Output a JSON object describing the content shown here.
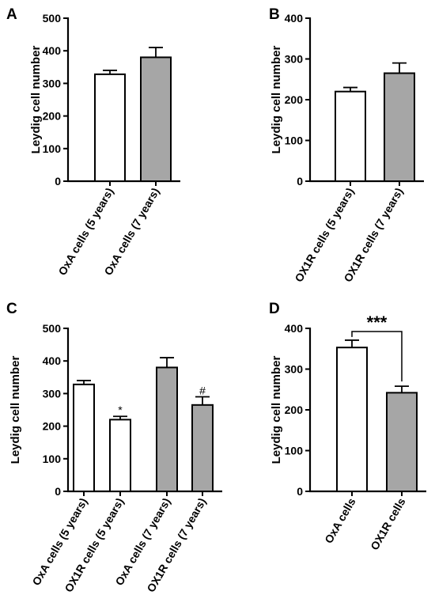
{
  "chart_data": [
    {
      "panel": "A",
      "type": "bar",
      "ylabel": "Leydig cell number",
      "ylim": [
        0,
        500
      ],
      "yticks": [
        0,
        100,
        200,
        300,
        400,
        500
      ],
      "categories": [
        "OxA cells (5 years)",
        "OxA cells (7 years)"
      ],
      "values": [
        328,
        380
      ],
      "errors": [
        12,
        30
      ],
      "colors": [
        "#ffffff",
        "#a6a6a6"
      ],
      "annotations": [
        "",
        ""
      ]
    },
    {
      "panel": "B",
      "type": "bar",
      "ylabel": "Leydig cell number",
      "ylim": [
        0,
        400
      ],
      "yticks": [
        0,
        100,
        200,
        300,
        400
      ],
      "categories": [
        "OX1R cells (5 years)",
        "OX1R cells (7 years)"
      ],
      "values": [
        220,
        265
      ],
      "errors": [
        10,
        25
      ],
      "colors": [
        "#ffffff",
        "#a6a6a6"
      ],
      "annotations": [
        "",
        ""
      ]
    },
    {
      "panel": "C",
      "type": "bar",
      "ylabel": "Leydig cell number",
      "ylim": [
        0,
        500
      ],
      "yticks": [
        0,
        100,
        200,
        300,
        400,
        500
      ],
      "categories": [
        "OxA cells (5 years)",
        "OX1R cells (5 years)",
        "OxA cells (7 years)",
        "OX1R cells (7 years)"
      ],
      "values": [
        328,
        220,
        380,
        265
      ],
      "errors": [
        12,
        10,
        30,
        25
      ],
      "colors": [
        "#ffffff",
        "#ffffff",
        "#a6a6a6",
        "#a6a6a6"
      ],
      "annotations": [
        "",
        "*",
        "",
        "#"
      ]
    },
    {
      "panel": "D",
      "type": "bar",
      "ylabel": "Leydig cell number",
      "ylim": [
        0,
        400
      ],
      "yticks": [
        0,
        100,
        200,
        300,
        400
      ],
      "categories": [
        "OxA cells",
        "OX1R cells"
      ],
      "values": [
        353,
        242
      ],
      "errors": [
        18,
        16
      ],
      "colors": [
        "#ffffff",
        "#a6a6a6"
      ],
      "annotations": [
        "",
        ""
      ],
      "significance": "***"
    }
  ]
}
